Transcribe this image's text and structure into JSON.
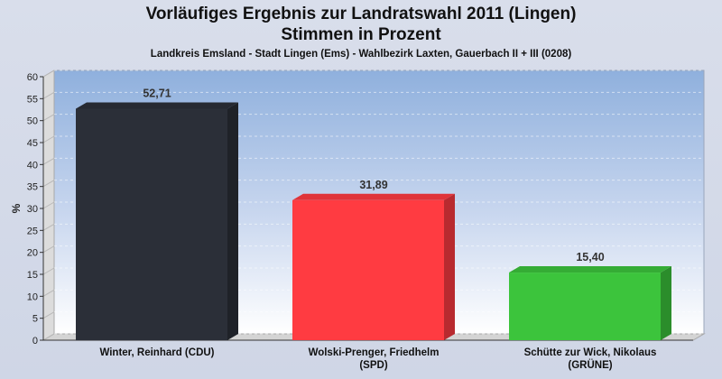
{
  "chart_data": {
    "type": "bar",
    "title_line1": "Vorläufiges Ergebnis zur Landratswahl 2011 (Lingen)",
    "title_line2": "Stimmen in Prozent",
    "subtitle": "Landkreis Emsland - Stadt Lingen (Ems) - Wahlbezirk Laxten, Gauerbach II + III (0208)",
    "ylabel": "%",
    "ylim": [
      0,
      60
    ],
    "yticks": [
      0,
      5,
      10,
      15,
      20,
      25,
      30,
      35,
      40,
      45,
      50,
      55,
      60
    ],
    "categories": [
      [
        "Winter, Reinhard (CDU)"
      ],
      [
        "Wolski-Prenger, Friedhelm",
        "(SPD)"
      ],
      [
        "Schütte zur Wick, Nikolaus",
        "(GRÜNE)"
      ]
    ],
    "values": [
      52.71,
      31.89,
      15.4
    ],
    "value_labels": [
      "52,71",
      "31,89",
      "15,40"
    ],
    "colors": [
      "#2b2f38",
      "#ff3b41",
      "#3cc43c"
    ],
    "grid": true,
    "legend": "none"
  }
}
